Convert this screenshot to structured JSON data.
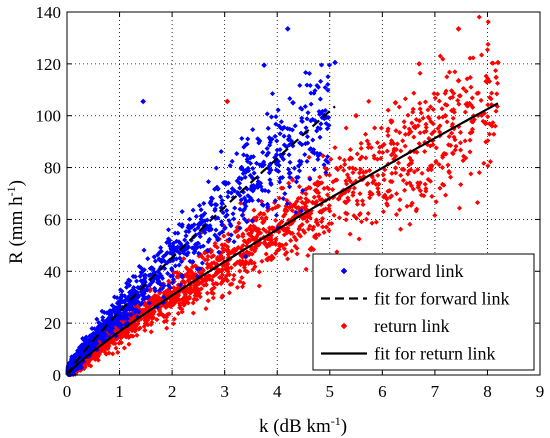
{
  "chart_data": {
    "type": "scatter",
    "xlabel": "k (dB km",
    "xlabel_exp": "-1",
    "xlabel_close": ")",
    "ylabel": "R (mm h",
    "ylabel_exp": "-1",
    "ylabel_close": ")",
    "xlim": [
      0,
      9
    ],
    "ylim": [
      0,
      140
    ],
    "x_ticks": [
      "0",
      "1",
      "2",
      "3",
      "4",
      "5",
      "6",
      "7",
      "8",
      "9"
    ],
    "y_ticks": [
      "0",
      "20",
      "40",
      "60",
      "80",
      "100",
      "120",
      "140"
    ],
    "grid": true,
    "legend_position": "lower-right",
    "series": [
      {
        "name": "forward link",
        "kind": "scatter",
        "color": "#0000ff",
        "marker": "diamond",
        "trend": {
          "a": 24.5,
          "b": 0.885,
          "k_min": 0.0,
          "k_max": 5.0,
          "spread": 0.12
        },
        "outliers": [
          [
            1.45,
            105.5
          ],
          [
            3.75,
            119.5
          ],
          [
            4.2,
            133.5
          ],
          [
            5.1,
            120.5
          ],
          [
            4.3,
            105
          ],
          [
            4.1,
            95
          ]
        ]
      },
      {
        "name": "fit for forward link",
        "kind": "line",
        "color": "#000000",
        "dash": "dashed",
        "function": "R = 24.5 k^0.885",
        "k_range": [
          0,
          5.1
        ]
      },
      {
        "name": "return link",
        "kind": "scatter",
        "color": "#ff0000",
        "marker": "diamond",
        "trend": {
          "a": 16.8,
          "b": 0.87,
          "k_min": 0.0,
          "k_max": 8.2,
          "spread": 0.13
        },
        "outliers": [
          [
            3.05,
            105.5
          ],
          [
            6.7,
            120
          ],
          [
            7.45,
            133.5
          ],
          [
            7.45,
            113.5
          ],
          [
            8.2,
            120.5
          ],
          [
            6.25,
            105
          ],
          [
            7.2,
            100
          ],
          [
            5.5,
            100
          ]
        ]
      },
      {
        "name": "fit for return link",
        "kind": "line",
        "color": "#000000",
        "dash": "solid",
        "function": "R = 16.8 k^0.87",
        "k_range": [
          0,
          8.2
        ]
      }
    ]
  }
}
